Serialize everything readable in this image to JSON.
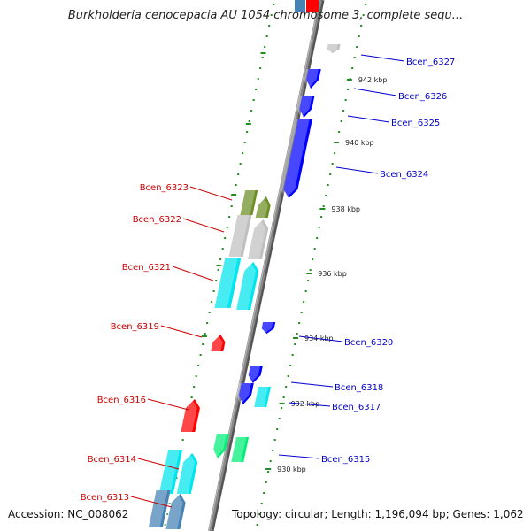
{
  "title": "Burkholderia cenocepacia AU 1054 chromosome 3, complete sequ...",
  "footer": {
    "accession": "Accession: NC_008062",
    "topology": "Topology: circular; Length: 1,196,094 bp; Genes: 1,062"
  },
  "colors": {
    "forward": "#ff0000",
    "reverse": "#0000ff",
    "cyan": "#00e5ee",
    "steelblue": "#4682b4",
    "olive": "#6b8e23",
    "gray": "#c0c0c0",
    "mint": "#00ee76",
    "ticks": "#228b22",
    "axis": "#888888"
  },
  "ticks": [
    {
      "label": "942 kbp"
    },
    {
      "label": "940 kbp"
    },
    {
      "label": "938 kbp"
    },
    {
      "label": "936 kbp"
    },
    {
      "label": "934 kbp"
    },
    {
      "label": "932 kbp"
    },
    {
      "label": "930 kbp"
    }
  ],
  "genes": [
    {
      "label": "Bcen_6327",
      "strand": "reverse",
      "color": "gray"
    },
    {
      "label": "Bcen_6326",
      "strand": "reverse",
      "color": "reverse"
    },
    {
      "label": "Bcen_6325",
      "strand": "reverse",
      "color": "reverse"
    },
    {
      "label": "Bcen_6324",
      "strand": "reverse",
      "color": "reverse"
    },
    {
      "label": "Bcen_6323",
      "strand": "forward",
      "color": "olive"
    },
    {
      "label": "Bcen_6322",
      "strand": "forward",
      "color": "gray"
    },
    {
      "label": "Bcen_6321",
      "strand": "forward",
      "color": "cyan"
    },
    {
      "label": "Bcen_6320",
      "strand": "reverse",
      "color": "reverse"
    },
    {
      "label": "Bcen_6319",
      "strand": "forward",
      "color": "forward"
    },
    {
      "label": "Bcen_6318",
      "strand": "reverse",
      "color": "reverse"
    },
    {
      "label": "Bcen_6317",
      "strand": "reverse",
      "color": "cyan"
    },
    {
      "label": "Bcen_6316",
      "strand": "forward",
      "color": "forward"
    },
    {
      "label": "Bcen_6315",
      "strand": "reverse",
      "color": "mint"
    },
    {
      "label": "Bcen_6314",
      "strand": "forward",
      "color": "cyan"
    },
    {
      "label": "Bcen_6313",
      "strand": "forward",
      "color": "steelblue"
    }
  ]
}
